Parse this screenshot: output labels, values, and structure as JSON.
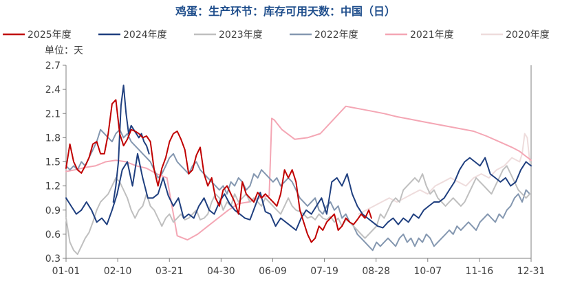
{
  "chart_data": {
    "type": "line",
    "title": "鸡蛋：生产环节：库存可用天数：中国（日）",
    "unit_label": "单位：天",
    "legend_position": "top",
    "grid": false,
    "x_ticks": [
      "01-01",
      "02-10",
      "03-21",
      "04-30",
      "06-09",
      "07-19",
      "08-28",
      "10-07",
      "11-16",
      "12-31"
    ],
    "y_ticks": [
      "0.3",
      "0.6",
      "0.9",
      "1.2",
      "1.5",
      "1.8",
      "2.1",
      "2.4",
      "2.7"
    ],
    "ylim": [
      0.3,
      2.7
    ],
    "x_range_days": [
      1,
      365
    ],
    "series": [
      {
        "name": "2025年度",
        "color": "#c00000",
        "width": 2.0,
        "x": [
          1,
          4,
          7,
          10,
          13,
          16,
          19,
          22,
          25,
          28,
          31,
          34,
          37,
          40,
          43,
          46,
          49,
          52,
          55,
          58,
          61,
          64,
          67,
          70,
          73,
          76,
          79,
          82,
          85,
          88,
          91,
          94,
          97,
          100,
          103,
          106,
          109,
          112,
          115,
          118,
          121,
          124,
          127,
          130,
          133,
          136,
          139,
          142,
          145,
          148,
          151,
          154,
          157,
          160,
          163,
          166,
          169,
          172,
          175,
          178,
          181,
          184,
          187,
          190,
          193,
          196,
          199,
          202,
          205,
          208,
          211,
          214,
          217,
          220,
          223,
          226,
          229,
          232,
          235,
          238,
          240
        ],
        "y": [
          1.42,
          1.72,
          1.5,
          1.4,
          1.36,
          1.45,
          1.55,
          1.72,
          1.75,
          1.6,
          1.6,
          1.85,
          2.22,
          2.27,
          1.85,
          1.7,
          1.78,
          1.9,
          1.88,
          1.85,
          1.8,
          1.82,
          1.75,
          1.4,
          1.2,
          1.42,
          1.55,
          1.75,
          1.85,
          1.88,
          1.78,
          1.65,
          1.35,
          1.4,
          1.58,
          1.68,
          1.35,
          1.2,
          1.3,
          1.05,
          0.95,
          1.15,
          1.2,
          1.1,
          1.0,
          0.85,
          1.25,
          1.1,
          1.05,
          1.0,
          1.12,
          1.05,
          1.1,
          1.05,
          1.0,
          0.95,
          1.1,
          1.4,
          1.3,
          1.4,
          1.25,
          0.9,
          0.75,
          0.6,
          0.5,
          0.55,
          0.7,
          0.65,
          0.75,
          0.8,
          0.85,
          0.65,
          0.7,
          0.8,
          0.75,
          0.72,
          0.78,
          0.85,
          0.8,
          0.9,
          0.8
        ]
      },
      {
        "name": "2024年度",
        "color": "#1f3f7f",
        "width": 2.0,
        "x": [
          1,
          5,
          9,
          13,
          17,
          21,
          25,
          29,
          33,
          37,
          41,
          45,
          49,
          53,
          57,
          61,
          65,
          69,
          73,
          77,
          81,
          85,
          89,
          93,
          97,
          101,
          105,
          109,
          113,
          117,
          121,
          125,
          129,
          133,
          137,
          141,
          145,
          149,
          153,
          157,
          161,
          165,
          169,
          173,
          177,
          181,
          185,
          189,
          193,
          197,
          201,
          205,
          209,
          213,
          217,
          221,
          225,
          229,
          233,
          237,
          241,
          245,
          249,
          253,
          257,
          261,
          265,
          269,
          273,
          277,
          281,
          285,
          289,
          293,
          297,
          301,
          305,
          309,
          313,
          317,
          321,
          325,
          329,
          333,
          337,
          341,
          345,
          349,
          353,
          357,
          361,
          365
        ],
        "y": [
          1.05,
          0.95,
          0.85,
          0.9,
          1.0,
          0.9,
          0.75,
          0.8,
          0.72,
          0.9,
          1.1,
          1.4,
          1.5,
          1.2,
          1.6,
          1.3,
          1.05,
          1.05,
          1.1,
          1.3,
          1.08,
          0.95,
          1.05,
          0.8,
          0.85,
          0.8,
          0.95,
          1.05,
          0.9,
          0.85,
          1.0,
          1.1,
          0.98,
          0.9,
          0.85,
          0.8,
          0.78,
          0.95,
          1.12,
          0.88,
          0.85,
          0.7,
          0.8,
          0.75,
          0.7,
          0.65,
          0.8,
          0.9,
          0.85,
          0.95,
          1.05,
          0.85,
          1.25,
          1.3,
          1.2,
          1.35,
          1.1,
          0.95,
          0.85,
          0.8,
          0.75,
          0.7,
          0.68,
          0.75,
          0.8,
          0.72,
          0.8,
          0.75,
          0.85,
          0.8,
          0.9,
          0.95,
          1.0,
          1.0,
          1.05,
          1.15,
          1.25,
          1.4,
          1.5,
          1.55,
          1.5,
          1.45,
          1.55,
          1.35,
          1.3,
          1.25,
          1.3,
          1.2,
          1.25,
          1.4,
          1.5,
          1.45
        ],
        "x2": [
          38,
          40,
          42,
          44,
          46,
          48,
          50,
          52,
          54,
          56,
          58,
          60,
          62,
          64,
          66
        ],
        "y2": [
          1.0,
          1.2,
          1.5,
          2.2,
          2.45,
          2.1,
          1.85,
          1.95,
          1.9,
          1.85,
          1.8,
          1.85,
          1.75,
          1.7,
          1.6
        ]
      },
      {
        "name": "2023年度",
        "color": "#bfbfbf",
        "width": 2.0,
        "x": [
          1,
          4,
          7,
          10,
          13,
          16,
          19,
          22,
          25,
          28,
          31,
          34,
          37,
          40,
          43,
          46,
          49,
          52,
          55,
          58,
          61,
          64,
          67,
          70,
          73,
          76,
          79,
          82,
          85,
          88,
          91,
          94,
          97,
          100,
          103,
          106,
          109,
          112,
          115,
          118,
          121,
          124,
          127,
          130,
          133,
          136,
          139,
          142,
          145,
          148,
          151,
          154,
          157,
          160,
          163,
          166,
          169,
          172,
          175,
          178,
          181,
          184,
          187,
          190,
          193,
          196,
          199,
          202,
          205,
          208,
          211,
          214,
          217,
          220,
          223,
          226,
          229,
          232,
          235,
          238,
          241,
          244,
          247,
          250,
          253,
          256,
          259,
          262,
          265,
          268,
          271,
          274,
          277,
          280,
          283,
          286,
          289,
          292,
          295,
          298,
          301,
          304,
          307,
          310,
          313,
          316,
          319,
          322,
          325,
          328,
          331,
          334,
          337,
          340,
          343,
          346,
          349,
          352,
          355,
          358,
          361,
          364
        ],
        "y": [
          0.8,
          0.5,
          0.4,
          0.35,
          0.45,
          0.55,
          0.62,
          0.75,
          0.9,
          1.0,
          1.05,
          1.1,
          1.2,
          1.3,
          1.25,
          1.15,
          1.05,
          0.9,
          0.8,
          0.9,
          0.95,
          1.1,
          0.95,
          0.9,
          0.8,
          0.7,
          0.8,
          0.85,
          0.75,
          0.8,
          0.85,
          0.78,
          0.8,
          0.85,
          0.9,
          0.78,
          0.8,
          0.85,
          1.0,
          1.1,
          1.05,
          0.9,
          1.0,
          0.95,
          1.1,
          1.0,
          1.05,
          1.1,
          1.0,
          1.05,
          1.0,
          0.95,
          1.05,
          1.0,
          0.95,
          0.9,
          0.85,
          0.95,
          1.05,
          0.95,
          0.9,
          0.88,
          0.85,
          0.8,
          0.82,
          0.78,
          0.85,
          0.8,
          0.78,
          0.82,
          0.75,
          0.8,
          0.7,
          0.78,
          0.75,
          0.7,
          0.65,
          0.6,
          0.55,
          0.6,
          0.65,
          0.7,
          0.85,
          0.8,
          0.9,
          1.0,
          1.05,
          1.0,
          1.15,
          1.2,
          1.25,
          1.3,
          1.25,
          1.35,
          1.2,
          1.1,
          1.15,
          1.05,
          1.0,
          0.95,
          1.0,
          1.05,
          1.0,
          0.95,
          1.0,
          1.1,
          1.2,
          1.3,
          1.25,
          1.2,
          1.15,
          1.1,
          1.2,
          1.3,
          1.4,
          1.45,
          1.35,
          1.25,
          1.15,
          1.1,
          1.05,
          1.1
        ]
      },
      {
        "name": "2022年度",
        "color": "#8497b0",
        "width": 2.0,
        "x": [
          1,
          4,
          7,
          10,
          13,
          16,
          19,
          22,
          25,
          28,
          31,
          34,
          37,
          40,
          43,
          46,
          49,
          52,
          55,
          58,
          61,
          64,
          67,
          70,
          73,
          76,
          79,
          82,
          85,
          88,
          91,
          94,
          97,
          100,
          103,
          106,
          109,
          112,
          115,
          118,
          121,
          124,
          127,
          130,
          133,
          136,
          139,
          142,
          145,
          148,
          151,
          154,
          157,
          160,
          163,
          166,
          169,
          172,
          175,
          178,
          181,
          184,
          187,
          190,
          193,
          196,
          199,
          202,
          205,
          208,
          211,
          214,
          217,
          220,
          223,
          226,
          229,
          232,
          235,
          238,
          241,
          244,
          247,
          250,
          253,
          256,
          259,
          262,
          265,
          268,
          271,
          274,
          277,
          280,
          283,
          286,
          289,
          292,
          295,
          298,
          301,
          304,
          307,
          310,
          313,
          316,
          319,
          322,
          325,
          328,
          331,
          334,
          337,
          340,
          343,
          346,
          349,
          352,
          355,
          358,
          361,
          364
        ],
        "y": [
          1.45,
          1.4,
          1.45,
          1.4,
          1.5,
          1.45,
          1.55,
          1.65,
          1.75,
          1.9,
          1.85,
          1.8,
          1.75,
          1.85,
          1.9,
          1.8,
          1.85,
          1.75,
          1.7,
          1.65,
          1.6,
          1.55,
          1.5,
          1.4,
          1.3,
          1.35,
          1.45,
          1.55,
          1.6,
          1.5,
          1.45,
          1.4,
          1.35,
          1.45,
          1.5,
          1.4,
          1.35,
          1.3,
          1.25,
          1.2,
          1.15,
          1.2,
          1.1,
          1.25,
          1.2,
          1.3,
          1.25,
          1.15,
          1.2,
          1.35,
          1.3,
          1.4,
          1.35,
          1.3,
          1.25,
          1.3,
          1.2,
          1.25,
          1.3,
          1.25,
          1.15,
          1.05,
          1.0,
          0.95,
          1.0,
          1.05,
          0.9,
          0.85,
          0.95,
          1.0,
          0.9,
          0.95,
          0.8,
          0.85,
          0.75,
          0.7,
          0.6,
          0.55,
          0.5,
          0.45,
          0.4,
          0.5,
          0.45,
          0.5,
          0.55,
          0.5,
          0.45,
          0.55,
          0.6,
          0.5,
          0.55,
          0.45,
          0.55,
          0.5,
          0.6,
          0.55,
          0.45,
          0.5,
          0.55,
          0.6,
          0.65,
          0.6,
          0.7,
          0.65,
          0.7,
          0.75,
          0.7,
          0.65,
          0.75,
          0.8,
          0.85,
          0.8,
          0.75,
          0.85,
          0.8,
          0.9,
          0.95,
          1.05,
          1.1,
          1.0,
          1.15,
          1.1
        ]
      },
      {
        "name": "2021年度",
        "color": "#f4a6b4",
        "width": 2.0,
        "x": [
          1,
          8,
          16,
          24,
          32,
          40,
          48,
          56,
          64,
          72,
          80,
          88,
          96,
          104,
          112,
          120,
          128,
          136,
          144,
          152,
          160,
          162,
          164,
          170,
          180,
          190,
          200,
          210,
          220,
          230,
          240,
          250,
          260,
          270,
          280,
          290,
          300,
          310,
          320,
          330,
          340,
          350,
          356,
          360,
          365
        ],
        "y": [
          1.38,
          1.4,
          1.43,
          1.45,
          1.5,
          1.52,
          1.5,
          1.45,
          1.42,
          1.35,
          1.3,
          0.58,
          0.53,
          0.6,
          0.7,
          0.8,
          0.9,
          0.98,
          1.0,
          1.05,
          1.08,
          2.04,
          2.02,
          1.9,
          1.78,
          1.8,
          1.85,
          2.02,
          2.19,
          2.16,
          2.13,
          2.1,
          2.06,
          2.03,
          2.0,
          1.97,
          1.94,
          1.91,
          1.88,
          1.82,
          1.75,
          1.68,
          1.63,
          1.58,
          1.52
        ]
      },
      {
        "name": "2020年度",
        "color": "#eedcdc",
        "width": 2.0,
        "x": [
          230,
          236,
          242,
          248,
          254,
          260,
          266,
          272,
          278,
          284,
          290,
          296,
          302,
          308,
          314,
          320,
          326,
          332,
          338,
          344,
          350,
          356,
          358,
          360,
          362,
          364
        ],
        "y": [
          0.85,
          0.9,
          0.95,
          1.0,
          1.05,
          1.0,
          1.05,
          1.1,
          1.15,
          1.1,
          1.2,
          1.25,
          1.3,
          1.25,
          1.2,
          1.3,
          1.35,
          1.3,
          1.4,
          1.45,
          1.55,
          1.5,
          1.6,
          1.85,
          1.8,
          1.5
        ]
      }
    ]
  }
}
